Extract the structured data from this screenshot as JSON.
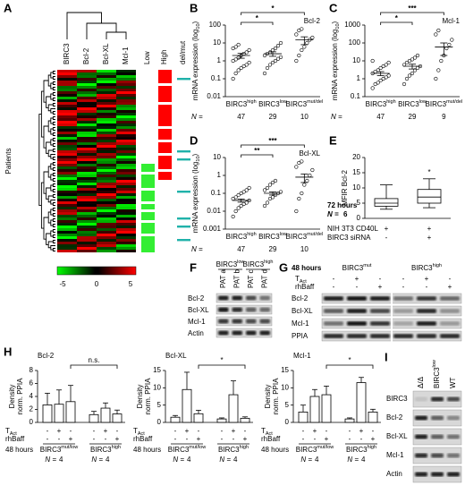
{
  "panels": {
    "A": {
      "label": "A",
      "columns": [
        "BIRC3",
        "Bcl-2",
        "Bcl-XL",
        "Mcl-1"
      ],
      "annotations": [
        "Low",
        "High",
        "del/mut"
      ],
      "rows_label": "Patients",
      "scale_ticks": [
        -5,
        0,
        5
      ]
    },
    "B": {
      "label": "B",
      "title": "Bcl-2",
      "ylabel": {
        "text": "mRNA expression (log",
        "sub": "10",
        "end": ")"
      },
      "log": true,
      "ylim": [
        0.01,
        100
      ],
      "yticks": [
        0.01,
        0.1,
        1,
        10,
        100
      ],
      "categories": [
        {
          "name": "BIRC3",
          "sup": "high"
        },
        {
          "name": "BIRC3",
          "sup": "low"
        },
        {
          "name": "BIRC3",
          "sup": "mut/del"
        }
      ],
      "n_label": "N =",
      "n": [
        47,
        29,
        10
      ],
      "groups": [
        {
          "values": [
            0.1,
            0.2,
            0.3,
            0.4,
            0.5,
            0.6,
            0.8,
            1,
            1.2,
            1.5,
            2,
            2.5,
            3,
            4,
            5,
            6,
            8
          ],
          "mean": 2,
          "sem": 0.6
        },
        {
          "values": [
            0.2,
            0.4,
            0.6,
            0.8,
            1,
            1.3,
            1.6,
            2,
            2.5,
            3,
            4,
            5,
            7,
            10
          ],
          "mean": 2.5,
          "sem": 0.7
        },
        {
          "values": [
            1,
            2,
            4,
            6,
            10,
            15,
            20,
            30,
            50,
            60
          ],
          "mean": 15,
          "sem": 7
        }
      ],
      "brackets": [
        {
          "from": 0,
          "to": 1,
          "text": "*"
        },
        {
          "from": 0,
          "to": 2,
          "text": "*"
        }
      ]
    },
    "C": {
      "label": "C",
      "title": "Mcl-1",
      "ylabel": {
        "text": "mRNA expression (log",
        "sub": "10",
        "end": ")"
      },
      "log": true,
      "ylim": [
        0.1,
        1000
      ],
      "yticks": [
        0.1,
        1,
        10,
        100,
        1000
      ],
      "categories": [
        {
          "name": "BIRC3",
          "sup": "high"
        },
        {
          "name": "BIRC3",
          "sup": "low"
        },
        {
          "name": "BIRC3",
          "sup": "mut/del"
        }
      ],
      "n_label": "N =",
      "n": [
        47,
        29,
        9
      ],
      "groups": [
        {
          "values": [
            0.3,
            0.5,
            0.6,
            0.8,
            1,
            1.2,
            1.5,
            2,
            2.5,
            3,
            4,
            5,
            6,
            8,
            10
          ],
          "mean": 2,
          "sem": 0.5
        },
        {
          "values": [
            0.5,
            1,
            1.5,
            2,
            3,
            4,
            5,
            6,
            8,
            10,
            12,
            15,
            20
          ],
          "mean": 5,
          "sem": 1.5
        },
        {
          "values": [
            1,
            3,
            10,
            20,
            50,
            80,
            150,
            300,
            500
          ],
          "mean": 60,
          "sem": 40
        }
      ],
      "brackets": [
        {
          "from": 0,
          "to": 1,
          "text": "*"
        },
        {
          "from": 0,
          "to": 2,
          "text": "***"
        }
      ]
    },
    "D": {
      "label": "D",
      "title": "Bcl-XL",
      "ylabel": {
        "text": "mRNA expression (log",
        "sub": "10",
        "end": ")"
      },
      "log": true,
      "ylim": [
        0.001,
        10
      ],
      "yticks": [
        0.001,
        0.01,
        0.1,
        1,
        10
      ],
      "categories": [
        {
          "name": "BIRC3",
          "sup": "high"
        },
        {
          "name": "BIRC3",
          "sup": "low"
        },
        {
          "name": "BIRC3",
          "sup": "mut/del"
        }
      ],
      "n_label": "N =",
      "n": [
        47,
        29,
        10
      ],
      "groups": [
        {
          "values": [
            0.005,
            0.01,
            0.015,
            0.02,
            0.025,
            0.03,
            0.04,
            0.05,
            0.06,
            0.08,
            0.1,
            0.12,
            0.15,
            0.2
          ],
          "mean": 0.04,
          "sem": 0.008
        },
        {
          "values": [
            0.02,
            0.03,
            0.05,
            0.06,
            0.08,
            0.1,
            0.12,
            0.15,
            0.2,
            0.3,
            0.4,
            0.5
          ],
          "mean": 0.1,
          "sem": 0.02
        },
        {
          "values": [
            0.01,
            0.05,
            0.1,
            0.3,
            0.5,
            1,
            2,
            3,
            5,
            6
          ],
          "mean": 0.8,
          "sem": 0.4
        }
      ],
      "brackets": [
        {
          "from": 0,
          "to": 1,
          "text": "**"
        },
        {
          "from": 0,
          "to": 2,
          "text": "***"
        }
      ]
    },
    "E": {
      "label": "E",
      "ylabel": "MFIR Bcl-2",
      "ylim": [
        0,
        20
      ],
      "yticks": [
        0,
        5,
        10,
        15,
        20
      ],
      "boxes": [
        {
          "min": 3,
          "q1": 4,
          "median": 5,
          "q3": 6.5,
          "max": 11
        },
        {
          "min": 3.5,
          "q1": 5,
          "median": 7,
          "q3": 9.5,
          "max": 13
        }
      ],
      "significance": "*",
      "time": "72 hours",
      "n_label": "N =",
      "n": 6,
      "conditions": [
        {
          "name": "NIH 3T3 CD40L",
          "signs": [
            "+",
            "+"
          ]
        },
        {
          "name": "BIRC3 siRNA",
          "signs": [
            "-",
            "+"
          ]
        }
      ]
    },
    "F": {
      "label": "F",
      "groups": [
        {
          "name": "BIRC3",
          "sup": "low"
        },
        {
          "name": "BIRC3",
          "sup": "high"
        }
      ],
      "columns": [
        "PAT a",
        "PAT b",
        "PAT c",
        "PAT d"
      ],
      "rows": [
        "Bcl-2",
        "Bcl-XL",
        "Mcl-1",
        "Actin"
      ]
    },
    "G": {
      "label": "G",
      "time": "48 hours",
      "groups": [
        {
          "name": "BIRC3",
          "sup": "mut"
        },
        {
          "name": "BIRC3",
          "sup": "high"
        }
      ],
      "t_act": {
        "name": "T",
        "sub": "Act"
      },
      "rhbaff": "rhBaff",
      "t_signs": [
        "-",
        "+",
        "-",
        "-",
        "+",
        "-"
      ],
      "r_signs": [
        "-",
        "-",
        "+",
        "-",
        "-",
        "+"
      ],
      "rows": [
        "Bcl-2",
        "Bcl-XL",
        "Mcl-1",
        "PPIA"
      ]
    },
    "H": {
      "label": "H",
      "ylabel": [
        "Density",
        "norm. PPIA"
      ],
      "t_act": {
        "name": "T",
        "sub": "Act"
      },
      "rhbaff": "rhBaff",
      "time": "48 hours",
      "t_signs": [
        "-",
        "+",
        "-",
        "-",
        "+",
        "-"
      ],
      "r_signs": [
        "-",
        "-",
        "+",
        "-",
        "-",
        "+"
      ],
      "groups": [
        {
          "name": "BIRC3",
          "sup": "mut/low"
        },
        {
          "name": "BIRC3",
          "sup": "high"
        }
      ],
      "n_label": "N =",
      "n": [
        4,
        4
      ],
      "charts": [
        {
          "title": "Bcl-2",
          "ylim": [
            0,
            8
          ],
          "yticks": [
            0,
            2,
            4,
            6,
            8
          ],
          "values": [
            2.7,
            2.8,
            3.2,
            1.2,
            2.2,
            1.3
          ],
          "errors": [
            1.8,
            2.2,
            2.5,
            0.5,
            0.8,
            0.6
          ],
          "bracket": {
            "from": 2,
            "to": 5,
            "text": "n.s."
          }
        },
        {
          "title": "Bcl-XL",
          "ylim": [
            0,
            15
          ],
          "yticks": [
            0,
            5,
            10,
            15
          ],
          "values": [
            1.5,
            9.5,
            2.5,
            1,
            8,
            1.2
          ],
          "errors": [
            0.5,
            5,
            1,
            0.3,
            4,
            0.4
          ],
          "bracket": {
            "from": 2,
            "to": 5,
            "text": "*"
          }
        },
        {
          "title": "Mcl-1",
          "ylim": [
            0,
            15
          ],
          "yticks": [
            0,
            5,
            10,
            15
          ],
          "values": [
            3,
            7.5,
            8,
            1,
            11.5,
            3
          ],
          "errors": [
            2,
            2,
            2.5,
            0.3,
            1.5,
            0.8
          ],
          "bracket": {
            "from": 2,
            "to": 5,
            "text": "*"
          }
        }
      ]
    },
    "I": {
      "label": "I",
      "columns": [
        "Δ/Δ",
        {
          "name": "BIRC3",
          "sup": "low"
        },
        "WT"
      ],
      "rows": [
        "BIRC3",
        "Bcl-2",
        "Bcl-XL",
        "Mcl-1",
        "Actin"
      ]
    }
  }
}
